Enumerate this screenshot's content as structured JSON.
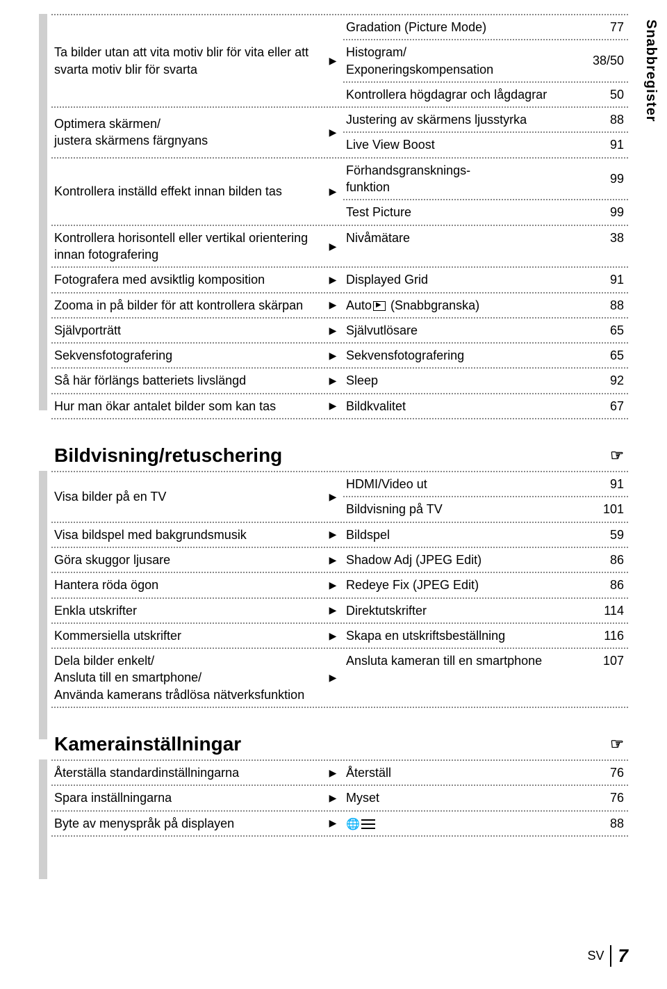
{
  "side_tab": "Snabbregister",
  "sections": {
    "first": {
      "gray_top": 0,
      "gray_height": 570,
      "rows": [
        {
          "left": "Ta bilder utan att vita motiv blir för vita eller att svarta motiv blir för svarta",
          "subs": [
            {
              "label": "Gradation (Picture Mode)",
              "val": "77"
            },
            {
              "label": "Histogram/\nExponeringskompensation",
              "val": "38/50"
            },
            {
              "label": "Kontrollera högdagrar och lågdagrar",
              "val": "50"
            }
          ]
        },
        {
          "left": "Optimera skärmen/\njustera skärmens färgnyans",
          "subs": [
            {
              "label": "Justering av skärmens ljusstyrka",
              "val": "88"
            },
            {
              "label": "Live View Boost",
              "val": "91"
            }
          ]
        },
        {
          "left": "Kontrollera inställd effekt innan bilden tas",
          "subs": [
            {
              "label": "Förhandsgransknings-\nfunktion",
              "val": "99"
            },
            {
              "label": "Test Picture",
              "val": "99"
            }
          ]
        },
        {
          "left": "Kontrollera horisontell eller vertikal orientering innan fotografering",
          "subs": [
            {
              "label": "Nivåmätare",
              "val": "38"
            }
          ]
        },
        {
          "left": "Fotografera med avsiktlig komposition",
          "subs": [
            {
              "label": "Displayed Grid",
              "val": "91"
            }
          ]
        },
        {
          "left": "Zooma in på bilder för att kontrollera skärpan",
          "subs": [
            {
              "label": "Auto__PLAY__ (Snabbgranska)",
              "val": "88",
              "play": true
            }
          ]
        },
        {
          "left": "Självporträtt",
          "subs": [
            {
              "label": "Självutlösare",
              "val": "65"
            }
          ]
        },
        {
          "left": "Sekvensfotografering",
          "subs": [
            {
              "label": "Sekvensfotografering",
              "val": "65"
            }
          ]
        },
        {
          "left": "Så här förlängs batteriets livslängd",
          "subs": [
            {
              "label": "Sleep",
              "val": "92"
            }
          ]
        },
        {
          "left": "Hur man ökar antalet bilder som kan tas",
          "subs": [
            {
              "label": "Bildkvalitet",
              "val": "67"
            }
          ]
        }
      ]
    },
    "second": {
      "title": "Bildvisning/retuschering",
      "gray_height": 386,
      "rows": [
        {
          "left": "Visa bilder på en TV",
          "subs": [
            {
              "label": "HDMI/Video ut",
              "val": "91"
            },
            {
              "label": "Bildvisning på TV",
              "val": "101"
            }
          ]
        },
        {
          "left": "Visa bildspel med bakgrundsmusik",
          "subs": [
            {
              "label": "Bildspel",
              "val": "59"
            }
          ]
        },
        {
          "left": "Göra skuggor ljusare",
          "subs": [
            {
              "label": "Shadow Adj (JPEG Edit)",
              "val": "86"
            }
          ]
        },
        {
          "left": "Hantera röda ögon",
          "subs": [
            {
              "label": "Redeye Fix (JPEG Edit)",
              "val": "86"
            }
          ]
        },
        {
          "left": "Enkla utskrifter",
          "subs": [
            {
              "label": "Direktutskrifter",
              "val": "114"
            }
          ]
        },
        {
          "left": "Kommersiella utskrifter",
          "subs": [
            {
              "label": "Skapa en utskriftsbeställning",
              "val": "116"
            }
          ]
        },
        {
          "left": "Dela bilder enkelt/\nAnsluta till en smartphone/\nAnvända kamerans trådlösa nätverksfunktion",
          "subs": [
            {
              "label": "Ansluta kameran till en smartphone",
              "val": "107"
            }
          ]
        }
      ]
    },
    "third": {
      "title": "Kamerainställningar",
      "gray_height": 172,
      "rows": [
        {
          "left": "Återställa standardinställningarna",
          "subs": [
            {
              "label": "Återställ",
              "val": "76"
            }
          ]
        },
        {
          "left": "Spara inställningarna",
          "subs": [
            {
              "label": "Myset",
              "val": "76"
            }
          ]
        },
        {
          "left": "Byte av menyspråk på displayen",
          "subs": [
            {
              "label": "__LANG__",
              "val": "88",
              "lang": true
            }
          ]
        }
      ]
    }
  },
  "footer": {
    "lang": "SV",
    "page": "7"
  }
}
